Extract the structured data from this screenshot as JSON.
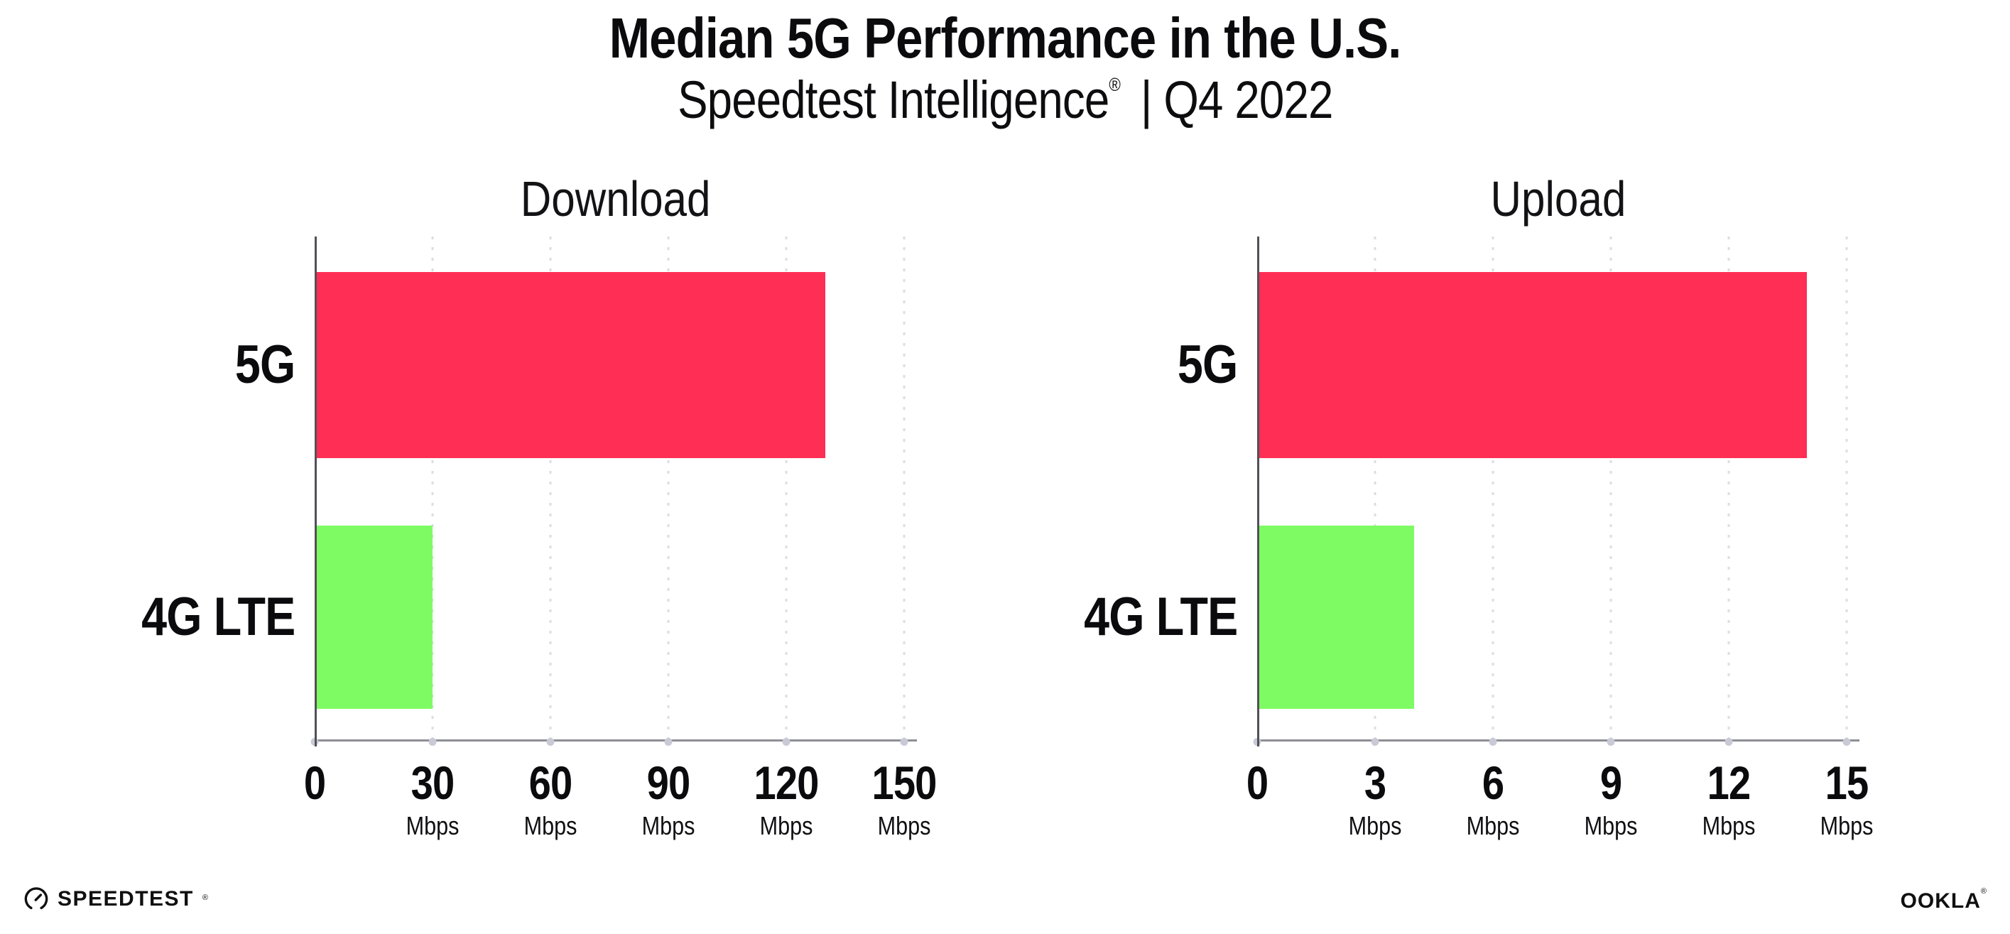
{
  "header": {
    "title": "Median 5G Performance in the U.S.",
    "subtitle_brand": "Speedtest Intelligence",
    "subtitle_reg": "®",
    "subtitle_period": "| Q4 2022"
  },
  "chart_data": [
    {
      "type": "bar",
      "orientation": "horizontal",
      "title": "Download",
      "unit": "Mbps",
      "categories": [
        "5G",
        "4G LTE"
      ],
      "values": [
        130,
        30
      ],
      "xticks": [
        0,
        30,
        60,
        90,
        120,
        150
      ],
      "xlim": [
        0,
        150
      ],
      "bar_colors": [
        "#FF2E55",
        "#7EFB63"
      ],
      "legend": "none",
      "grid": "vertical-dotted"
    },
    {
      "type": "bar",
      "orientation": "horizontal",
      "title": "Upload",
      "unit": "Mbps",
      "categories": [
        "5G",
        "4G LTE"
      ],
      "values": [
        14,
        4
      ],
      "xticks": [
        0,
        3,
        6,
        9,
        12,
        15
      ],
      "xlim": [
        0,
        15
      ],
      "bar_colors": [
        "#FF2E55",
        "#7EFB63"
      ],
      "legend": "none",
      "grid": "vertical-dotted"
    }
  ],
  "footer": {
    "speedtest_label": "SPEEDTEST",
    "speedtest_reg": "®",
    "ookla_label": "OOKLA",
    "ookla_reg": "®"
  },
  "colors": {
    "bar_5g": "#FF2E55",
    "bar_4g_lte": "#7EFB63",
    "axis_x": "#8E8E96",
    "axis_y": "#515158",
    "gridline": "#DCDDE6",
    "tick_dot": "#C9CAD6",
    "text": "#0B0B0D",
    "background": "#FFFFFF"
  }
}
